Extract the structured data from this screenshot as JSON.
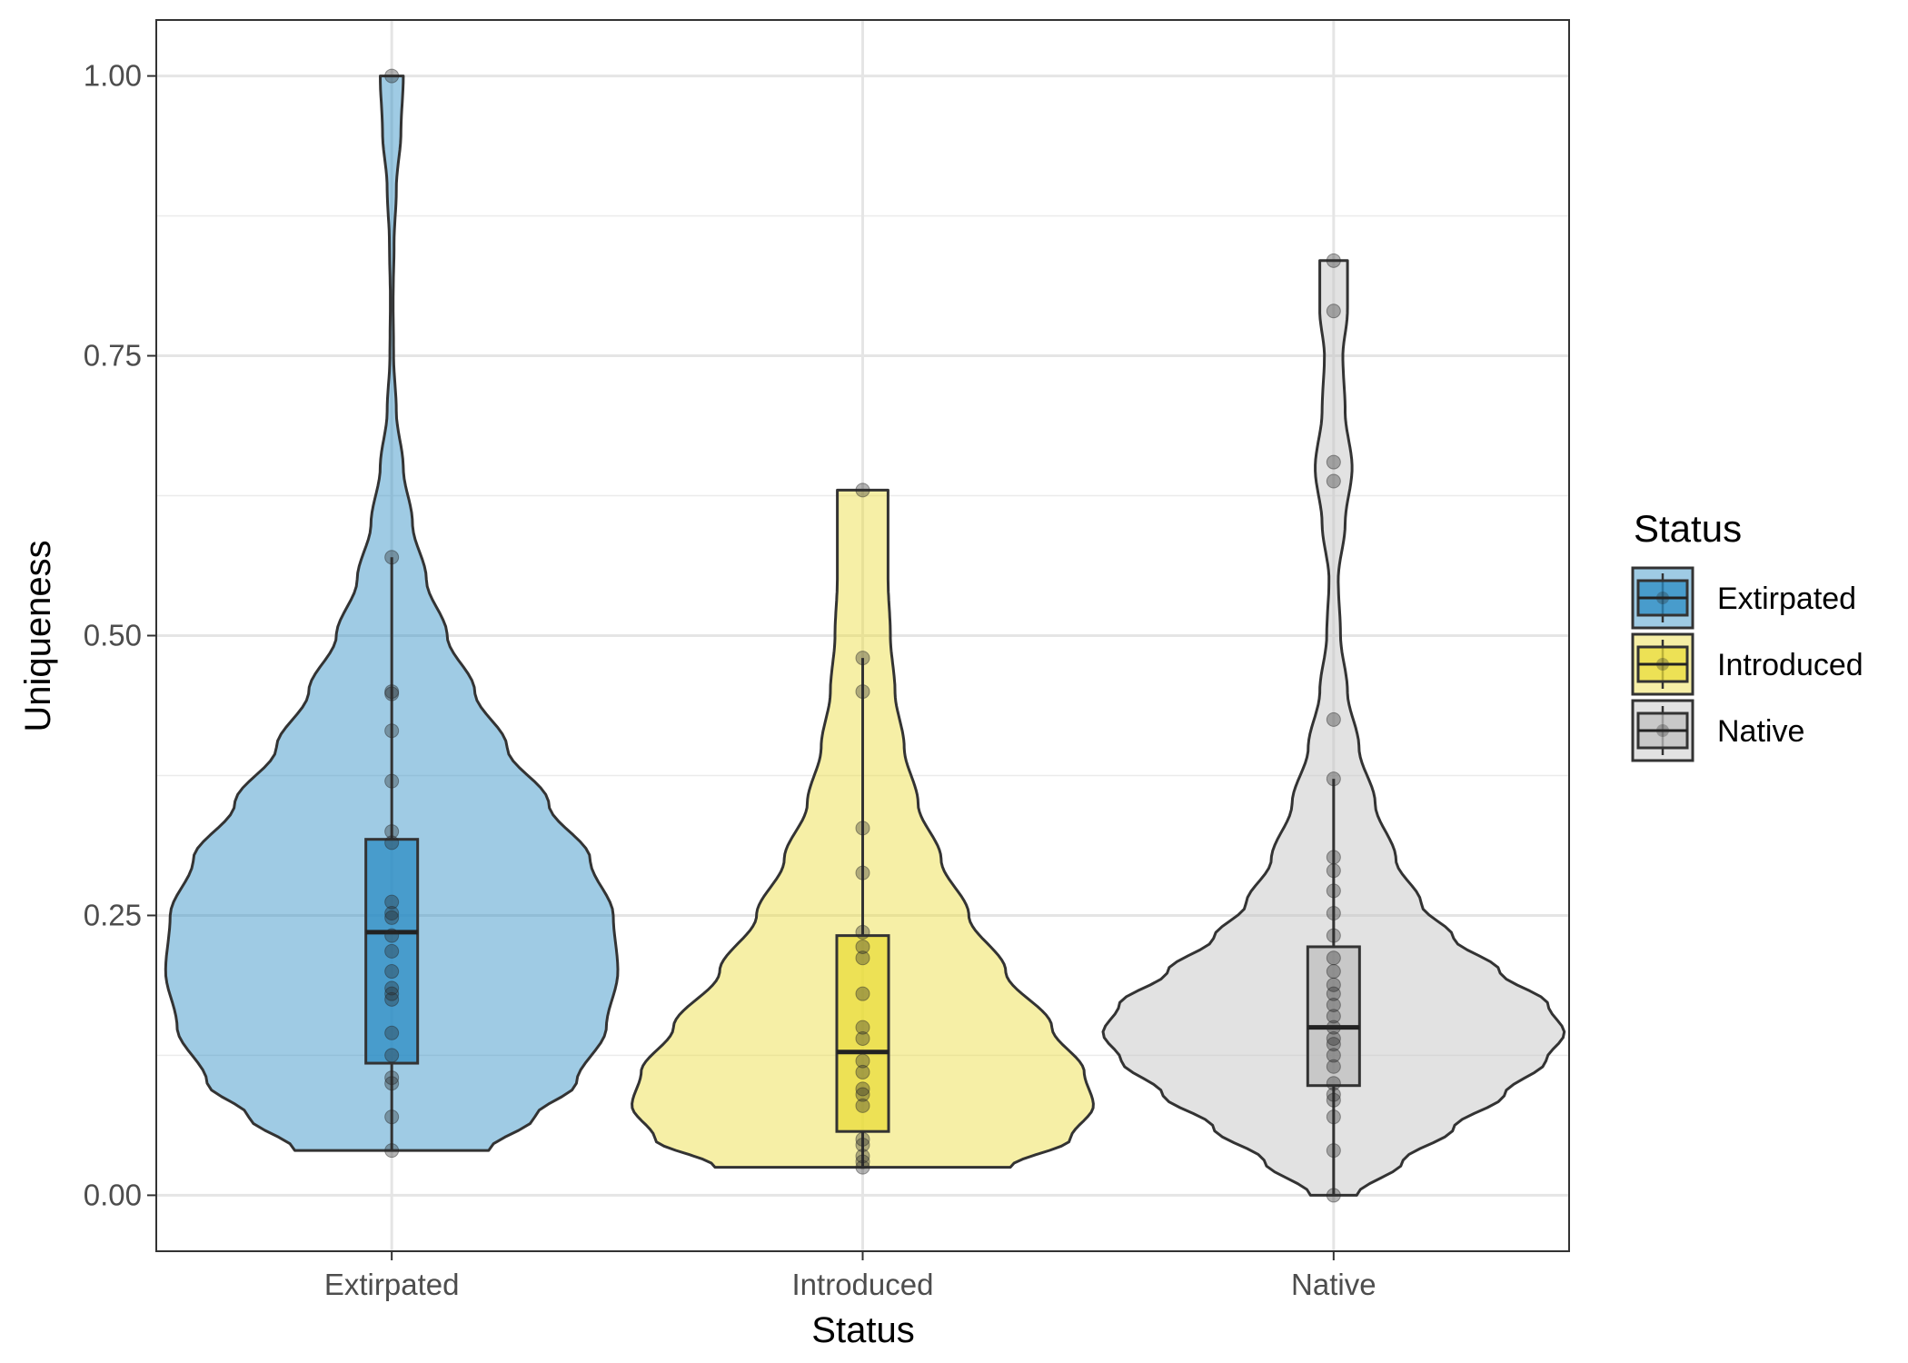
{
  "chart_data": {
    "type": "violin",
    "xlabel": "Status",
    "ylabel": "Uniqueness",
    "ylim": [
      -0.05,
      1.05
    ],
    "yticks": [
      0.0,
      0.25,
      0.5,
      0.75,
      1.0
    ],
    "ytick_labels": [
      "0.00",
      "0.25",
      "0.50",
      "0.75",
      "1.00"
    ],
    "grid": true,
    "legend": {
      "title": "Status",
      "position": "right"
    },
    "categories": [
      "Extirpated",
      "Introduced",
      "Native"
    ],
    "series": [
      {
        "name": "Extirpated",
        "color": "#2b8cc4",
        "box": {
          "min": 0.04,
          "q1": 0.118,
          "median": 0.235,
          "q3": 0.318,
          "max": 0.57
        },
        "violin_range": [
          0.04,
          1.0
        ],
        "density_profile": [
          [
            0.04,
            0.42
          ],
          [
            0.07,
            0.62
          ],
          [
            0.1,
            0.8
          ],
          [
            0.15,
            0.93
          ],
          [
            0.2,
            0.98
          ],
          [
            0.25,
            0.96
          ],
          [
            0.3,
            0.86
          ],
          [
            0.35,
            0.68
          ],
          [
            0.4,
            0.5
          ],
          [
            0.45,
            0.36
          ],
          [
            0.5,
            0.24
          ],
          [
            0.55,
            0.15
          ],
          [
            0.6,
            0.09
          ],
          [
            0.65,
            0.05
          ],
          [
            0.7,
            0.02
          ],
          [
            0.75,
            0.008
          ],
          [
            0.8,
            0.006
          ],
          [
            0.85,
            0.01
          ],
          [
            0.9,
            0.02
          ],
          [
            0.95,
            0.04
          ],
          [
            1.0,
            0.05
          ]
        ],
        "points": [
          1.0,
          0.57,
          0.45,
          0.448,
          0.415,
          0.37,
          0.325,
          0.315,
          0.262,
          0.252,
          0.248,
          0.232,
          0.218,
          0.2,
          0.185,
          0.18,
          0.175,
          0.145,
          0.125,
          0.105,
          0.1,
          0.07,
          0.04
        ]
      },
      {
        "name": "Introduced",
        "color": "#eadc3a",
        "box": {
          "min": 0.025,
          "q1": 0.057,
          "median": 0.128,
          "q3": 0.232,
          "max": 0.48
        },
        "violin_range": [
          0.025,
          0.63
        ],
        "density_profile": [
          [
            0.025,
            0.64
          ],
          [
            0.05,
            0.9
          ],
          [
            0.08,
            1.0
          ],
          [
            0.11,
            0.96
          ],
          [
            0.15,
            0.82
          ],
          [
            0.2,
            0.62
          ],
          [
            0.25,
            0.46
          ],
          [
            0.3,
            0.34
          ],
          [
            0.35,
            0.24
          ],
          [
            0.4,
            0.18
          ],
          [
            0.45,
            0.14
          ],
          [
            0.5,
            0.12
          ],
          [
            0.55,
            0.11
          ],
          [
            0.6,
            0.11
          ],
          [
            0.63,
            0.11
          ]
        ],
        "points": [
          0.63,
          0.48,
          0.45,
          0.328,
          0.288,
          0.235,
          0.222,
          0.212,
          0.18,
          0.15,
          0.14,
          0.12,
          0.11,
          0.095,
          0.09,
          0.08,
          0.05,
          0.045,
          0.035,
          0.03,
          0.025
        ]
      },
      {
        "name": "Native",
        "color": "#bfbfbf",
        "box": {
          "min": 0.0,
          "q1": 0.098,
          "median": 0.15,
          "q3": 0.222,
          "max": 0.372
        },
        "violin_range": [
          0.0,
          0.835
        ],
        "density_profile": [
          [
            0.0,
            0.1
          ],
          [
            0.03,
            0.3
          ],
          [
            0.06,
            0.52
          ],
          [
            0.09,
            0.74
          ],
          [
            0.12,
            0.92
          ],
          [
            0.145,
            1.0
          ],
          [
            0.17,
            0.93
          ],
          [
            0.2,
            0.72
          ],
          [
            0.23,
            0.52
          ],
          [
            0.26,
            0.38
          ],
          [
            0.3,
            0.27
          ],
          [
            0.35,
            0.18
          ],
          [
            0.4,
            0.11
          ],
          [
            0.45,
            0.06
          ],
          [
            0.5,
            0.03
          ],
          [
            0.55,
            0.02
          ],
          [
            0.6,
            0.05
          ],
          [
            0.65,
            0.08
          ],
          [
            0.7,
            0.05
          ],
          [
            0.75,
            0.04
          ],
          [
            0.79,
            0.06
          ],
          [
            0.835,
            0.06
          ]
        ],
        "points": [
          0.835,
          0.79,
          0.655,
          0.638,
          0.425,
          0.372,
          0.302,
          0.29,
          0.272,
          0.252,
          0.232,
          0.212,
          0.2,
          0.188,
          0.18,
          0.17,
          0.16,
          0.15,
          0.14,
          0.135,
          0.125,
          0.115,
          0.1,
          0.09,
          0.085,
          0.07,
          0.04,
          0.0
        ]
      }
    ]
  }
}
